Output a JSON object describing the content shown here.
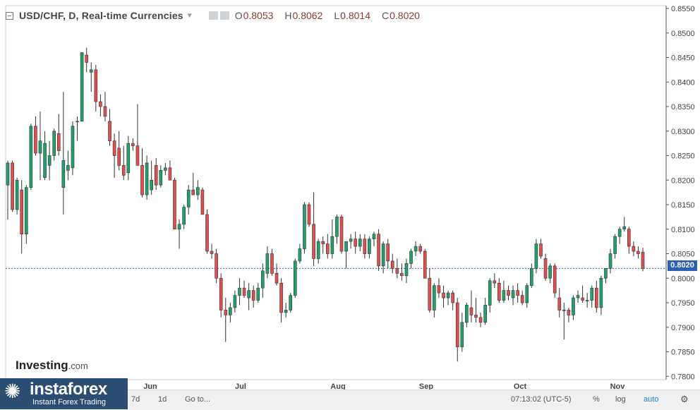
{
  "header": {
    "symbol_title": "USD/CHF, D, Real-time Currencies",
    "open_label": "O",
    "open": "0.8053",
    "high_label": "H",
    "high": "0.8062",
    "low_label": "L",
    "low": "0.8014",
    "close_label": "C",
    "close": "0.8020"
  },
  "watermark": {
    "brand": "Investing",
    "suffix": ".com"
  },
  "current_price_label": "0.8020",
  "bottom_bar": {
    "range_7d": "7d",
    "range_1d": "1d",
    "goto": "Go to...",
    "time": "07:13:02 (UTC-5)",
    "percent": "%",
    "log": "log",
    "auto": "auto",
    "settings_icon": "gear-icon"
  },
  "logo": {
    "name": "instaforex",
    "tagline": "Instant Forex Trading",
    "icon": "instaforex-logo-icon"
  },
  "colors": {
    "up": "#22a06b",
    "down": "#e04e4e",
    "price_line": "#2d5fb3"
  },
  "chart_data": {
    "type": "candlestick",
    "x_tick_labels": [
      "Jun",
      "Jul",
      "Aug",
      "Sep",
      "Oct",
      "Nov"
    ],
    "y_tick_labels": [
      "0.7800",
      "0.7850",
      "0.7900",
      "0.7950",
      "0.8000",
      "0.8050",
      "0.8100",
      "0.8150",
      "0.8200",
      "0.8250",
      "0.8300",
      "0.8350",
      "0.8400",
      "0.8450",
      "0.8500",
      "0.8550"
    ],
    "ylim": [
      0.778,
      0.856
    ],
    "current_price": 0.802,
    "candles": [
      [
        0.819,
        0.824,
        0.812,
        0.8235
      ],
      [
        0.8235,
        0.824,
        0.8135,
        0.814
      ],
      [
        0.814,
        0.8205,
        0.813,
        0.82
      ],
      [
        0.818,
        0.82,
        0.805,
        0.809
      ],
      [
        0.809,
        0.819,
        0.807,
        0.8185
      ],
      [
        0.8185,
        0.8315,
        0.818,
        0.831
      ],
      [
        0.831,
        0.833,
        0.825,
        0.8255
      ],
      [
        0.8255,
        0.834,
        0.82,
        0.828
      ],
      [
        0.8205,
        0.83,
        0.82,
        0.8275
      ],
      [
        0.823,
        0.828,
        0.82,
        0.825
      ],
      [
        0.825,
        0.8305,
        0.824,
        0.83
      ],
      [
        0.8295,
        0.8335,
        0.825,
        0.826
      ],
      [
        0.8185,
        0.838,
        0.813,
        0.824
      ],
      [
        0.822,
        0.826,
        0.82,
        0.823
      ],
      [
        0.8225,
        0.832,
        0.821,
        0.831
      ],
      [
        0.832,
        0.833,
        0.828,
        0.832
      ],
      [
        0.832,
        0.846,
        0.832,
        0.846
      ],
      [
        0.8455,
        0.847,
        0.842,
        0.844
      ],
      [
        0.842,
        0.844,
        0.838,
        0.8425
      ],
      [
        0.8425,
        0.8435,
        0.834,
        0.836
      ],
      [
        0.836,
        0.8375,
        0.833,
        0.835
      ],
      [
        0.835,
        0.838,
        0.832,
        0.833
      ],
      [
        0.832,
        0.8345,
        0.827,
        0.828
      ],
      [
        0.828,
        0.8295,
        0.8205,
        0.825
      ],
      [
        0.8265,
        0.83,
        0.822,
        0.823
      ],
      [
        0.823,
        0.827,
        0.82,
        0.821
      ],
      [
        0.8215,
        0.829,
        0.82,
        0.8275
      ],
      [
        0.8275,
        0.8285,
        0.826,
        0.827
      ],
      [
        0.827,
        0.8355,
        0.823,
        0.823
      ],
      [
        0.823,
        0.8265,
        0.8165,
        0.817
      ],
      [
        0.817,
        0.825,
        0.816,
        0.8235
      ],
      [
        0.818,
        0.824,
        0.817,
        0.82
      ],
      [
        0.823,
        0.8245,
        0.818,
        0.819
      ],
      [
        0.819,
        0.823,
        0.8185,
        0.822
      ],
      [
        0.822,
        0.8235,
        0.821,
        0.8225
      ],
      [
        0.8225,
        0.824,
        0.82,
        0.82
      ],
      [
        0.82,
        0.8205,
        0.81,
        0.81
      ],
      [
        0.81,
        0.812,
        0.806,
        0.811
      ],
      [
        0.811,
        0.815,
        0.81,
        0.8145
      ],
      [
        0.8145,
        0.819,
        0.813,
        0.818
      ],
      [
        0.818,
        0.8215,
        0.817,
        0.817
      ],
      [
        0.817,
        0.82,
        0.816,
        0.8185
      ],
      [
        0.818,
        0.8185,
        0.813,
        0.813
      ],
      [
        0.813,
        0.814,
        0.805,
        0.8055
      ],
      [
        0.8055,
        0.807,
        0.804,
        0.805
      ],
      [
        0.805,
        0.806,
        0.799,
        0.8
      ],
      [
        0.8,
        0.801,
        0.792,
        0.7935
      ],
      [
        0.7935,
        0.796,
        0.787,
        0.7925
      ],
      [
        0.7925,
        0.795,
        0.791,
        0.794
      ],
      [
        0.794,
        0.7975,
        0.793,
        0.7965
      ],
      [
        0.7965,
        0.8,
        0.7945,
        0.798
      ],
      [
        0.798,
        0.7995,
        0.796,
        0.7965
      ],
      [
        0.796,
        0.799,
        0.7935,
        0.7975
      ],
      [
        0.7975,
        0.7985,
        0.794,
        0.7955
      ],
      [
        0.7955,
        0.799,
        0.795,
        0.798
      ],
      [
        0.798,
        0.803,
        0.796,
        0.8015
      ],
      [
        0.801,
        0.8065,
        0.8,
        0.805
      ],
      [
        0.805,
        0.806,
        0.8005,
        0.801
      ],
      [
        0.801,
        0.803,
        0.7985,
        0.799
      ],
      [
        0.799,
        0.8,
        0.791,
        0.793
      ],
      [
        0.793,
        0.795,
        0.792,
        0.7935
      ],
      [
        0.7935,
        0.797,
        0.793,
        0.7965
      ],
      [
        0.7965,
        0.804,
        0.796,
        0.8035
      ],
      [
        0.8035,
        0.807,
        0.803,
        0.806
      ],
      [
        0.806,
        0.8155,
        0.805,
        0.815
      ],
      [
        0.815,
        0.8155,
        0.8105,
        0.811
      ],
      [
        0.811,
        0.8175,
        0.8025,
        0.804
      ],
      [
        0.804,
        0.808,
        0.803,
        0.8075
      ],
      [
        0.8075,
        0.8085,
        0.805,
        0.807
      ],
      [
        0.807,
        0.809,
        0.804,
        0.805
      ],
      [
        0.805,
        0.812,
        0.804,
        0.8085
      ],
      [
        0.8085,
        0.813,
        0.807,
        0.8125
      ],
      [
        0.8125,
        0.813,
        0.805,
        0.8055
      ],
      [
        0.8055,
        0.807,
        0.802,
        0.8075
      ],
      [
        0.8075,
        0.809,
        0.806,
        0.808
      ],
      [
        0.808,
        0.8095,
        0.805,
        0.8065
      ],
      [
        0.8065,
        0.809,
        0.8055,
        0.808
      ],
      [
        0.808,
        0.809,
        0.804,
        0.805
      ],
      [
        0.805,
        0.8085,
        0.804,
        0.808
      ],
      [
        0.808,
        0.8095,
        0.8065,
        0.809
      ],
      [
        0.809,
        0.81,
        0.8015,
        0.8025
      ],
      [
        0.8025,
        0.8075,
        0.801,
        0.807
      ],
      [
        0.807,
        0.808,
        0.802,
        0.8035
      ],
      [
        0.8035,
        0.805,
        0.801,
        0.802
      ],
      [
        0.802,
        0.804,
        0.8,
        0.801
      ],
      [
        0.801,
        0.803,
        0.7995,
        0.8005
      ],
      [
        0.8005,
        0.804,
        0.799,
        0.803
      ],
      [
        0.803,
        0.806,
        0.802,
        0.8055
      ],
      [
        0.8055,
        0.8075,
        0.8045,
        0.8065
      ],
      [
        0.8065,
        0.807,
        0.805,
        0.8055
      ],
      [
        0.8055,
        0.806,
        0.8,
        0.8
      ],
      [
        0.8,
        0.802,
        0.793,
        0.7935
      ],
      [
        0.7935,
        0.799,
        0.792,
        0.7985
      ],
      [
        0.7985,
        0.8,
        0.796,
        0.797
      ],
      [
        0.797,
        0.7985,
        0.794,
        0.796
      ],
      [
        0.796,
        0.7975,
        0.7945,
        0.797
      ],
      [
        0.797,
        0.7975,
        0.7935,
        0.795
      ],
      [
        0.795,
        0.796,
        0.783,
        0.786
      ],
      [
        0.786,
        0.793,
        0.785,
        0.791
      ],
      [
        0.791,
        0.795,
        0.79,
        0.7945
      ],
      [
        0.794,
        0.7975,
        0.791,
        0.7925
      ],
      [
        0.7925,
        0.796,
        0.791,
        0.792
      ],
      [
        0.792,
        0.793,
        0.79,
        0.791
      ],
      [
        0.791,
        0.796,
        0.7905,
        0.7945
      ],
      [
        0.7945,
        0.8,
        0.793,
        0.7995
      ],
      [
        0.7995,
        0.801,
        0.798,
        0.799
      ],
      [
        0.799,
        0.8,
        0.795,
        0.7955
      ],
      [
        0.7955,
        0.7995,
        0.795,
        0.7975
      ],
      [
        0.7975,
        0.7985,
        0.7955,
        0.7965
      ],
      [
        0.796,
        0.7985,
        0.7945,
        0.7975
      ],
      [
        0.7975,
        0.799,
        0.795,
        0.7965
      ],
      [
        0.7965,
        0.7975,
        0.7945,
        0.795
      ],
      [
        0.795,
        0.799,
        0.794,
        0.7985
      ],
      [
        0.7985,
        0.803,
        0.798,
        0.802
      ],
      [
        0.802,
        0.808,
        0.801,
        0.807
      ],
      [
        0.807,
        0.808,
        0.804,
        0.8045
      ],
      [
        0.804,
        0.805,
        0.7995,
        0.8
      ],
      [
        0.8,
        0.803,
        0.799,
        0.8025
      ],
      [
        0.8025,
        0.803,
        0.796,
        0.797
      ],
      [
        0.796,
        0.798,
        0.792,
        0.7935
      ],
      [
        0.7935,
        0.795,
        0.7875,
        0.7935
      ],
      [
        0.7935,
        0.794,
        0.791,
        0.7925
      ],
      [
        0.7925,
        0.7965,
        0.7915,
        0.796
      ],
      [
        0.796,
        0.7975,
        0.795,
        0.7965
      ],
      [
        0.796,
        0.7985,
        0.795,
        0.7955
      ],
      [
        0.7955,
        0.797,
        0.794,
        0.7955
      ],
      [
        0.7955,
        0.7985,
        0.794,
        0.798
      ],
      [
        0.798,
        0.7995,
        0.793,
        0.794
      ],
      [
        0.794,
        0.8005,
        0.7925,
        0.8
      ],
      [
        0.8,
        0.802,
        0.799,
        0.802
      ],
      [
        0.802,
        0.806,
        0.801,
        0.805
      ],
      [
        0.805,
        0.809,
        0.804,
        0.8085
      ],
      [
        0.8085,
        0.8105,
        0.807,
        0.81
      ],
      [
        0.81,
        0.8125,
        0.8095,
        0.8105
      ],
      [
        0.81,
        0.8105,
        0.805,
        0.8065
      ],
      [
        0.8065,
        0.8075,
        0.8045,
        0.8055
      ],
      [
        0.8055,
        0.8065,
        0.804,
        0.805
      ],
      [
        0.8053,
        0.8062,
        0.8014,
        0.802
      ]
    ]
  }
}
